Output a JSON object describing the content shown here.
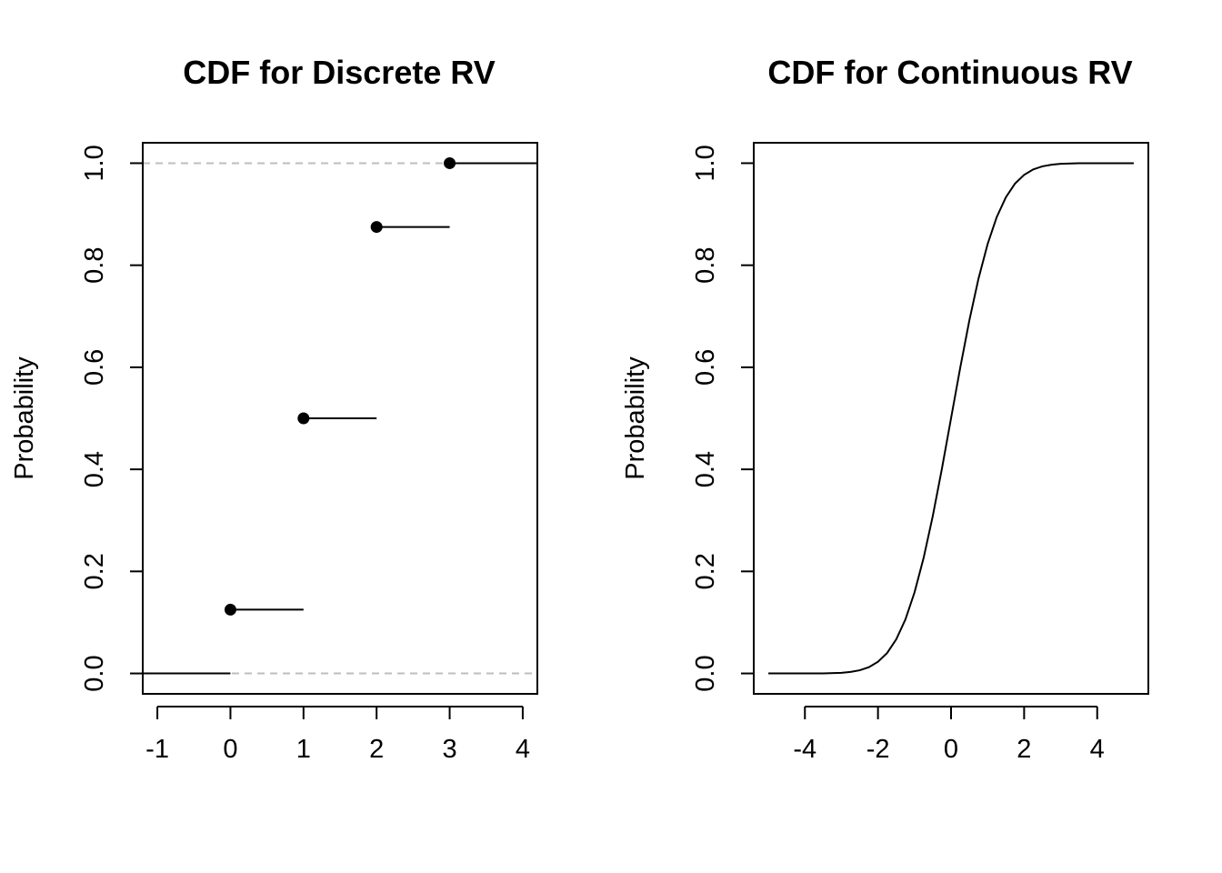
{
  "colors": {
    "ink": "#000000",
    "reference_line": "#bebebe",
    "background": "#ffffff"
  },
  "chart_data": [
    {
      "type": "line",
      "subtype": "step-cdf",
      "title": "CDF for Discrete RV",
      "xlabel": "",
      "ylabel": "Probability",
      "xlim": [
        -1.2,
        4.2
      ],
      "ylim": [
        -0.04,
        1.04
      ],
      "xticks": [
        -1,
        0,
        1,
        2,
        3,
        4
      ],
      "yticks": [
        0.0,
        0.2,
        0.4,
        0.6,
        0.8,
        1.0
      ],
      "xtick_labels": [
        "-1",
        "0",
        "1",
        "2",
        "3",
        "4"
      ],
      "ytick_labels": [
        "0.0",
        "0.2",
        "0.4",
        "0.6",
        "0.8",
        "1.0"
      ],
      "reference_lines_y": [
        0.0,
        1.0
      ],
      "points": [
        {
          "x": 0,
          "y": 0.125
        },
        {
          "x": 1,
          "y": 0.5
        },
        {
          "x": 2,
          "y": 0.875
        },
        {
          "x": 3,
          "y": 1.0
        }
      ],
      "segments": [
        {
          "x0": -1.2,
          "x1": 0,
          "y": 0.0
        },
        {
          "x0": 0,
          "x1": 1,
          "y": 0.125
        },
        {
          "x0": 1,
          "x1": 2,
          "y": 0.5
        },
        {
          "x0": 2,
          "x1": 3,
          "y": 0.875
        },
        {
          "x0": 3,
          "x1": 4.2,
          "y": 1.0
        }
      ],
      "grid": false
    },
    {
      "type": "line",
      "title": "CDF for Continuous RV",
      "xlabel": "",
      "ylabel": "Probability",
      "xlim": [
        -5.4,
        5.4
      ],
      "ylim": [
        -0.04,
        1.04
      ],
      "xticks": [
        -4,
        -2,
        0,
        2,
        4
      ],
      "yticks": [
        0.0,
        0.2,
        0.4,
        0.6,
        0.8,
        1.0
      ],
      "xtick_labels": [
        "-4",
        "-2",
        "0",
        "2",
        "4"
      ],
      "ytick_labels": [
        "0.0",
        "0.2",
        "0.4",
        "0.6",
        "0.8",
        "1.0"
      ],
      "series": [
        {
          "x": [
            -5,
            -4.5,
            -4,
            -3.5,
            -3,
            -2.75,
            -2.5,
            -2.25,
            -2,
            -1.75,
            -1.5,
            -1.25,
            -1,
            -0.75,
            -0.5,
            -0.25,
            0,
            0.25,
            0.5,
            0.75,
            1,
            1.25,
            1.5,
            1.75,
            2,
            2.25,
            2.5,
            2.75,
            3,
            3.5,
            4,
            4.5,
            5
          ],
          "y": [
            0.0,
            0.0,
            0.0,
            0.0002,
            0.0013,
            0.003,
            0.0062,
            0.0122,
            0.0228,
            0.0401,
            0.0668,
            0.1056,
            0.1587,
            0.2266,
            0.3085,
            0.4013,
            0.5,
            0.5987,
            0.6915,
            0.7734,
            0.8413,
            0.8944,
            0.9332,
            0.9599,
            0.9772,
            0.9878,
            0.9938,
            0.997,
            0.9987,
            0.9998,
            1.0,
            1.0,
            1.0
          ]
        }
      ],
      "grid": false
    }
  ]
}
